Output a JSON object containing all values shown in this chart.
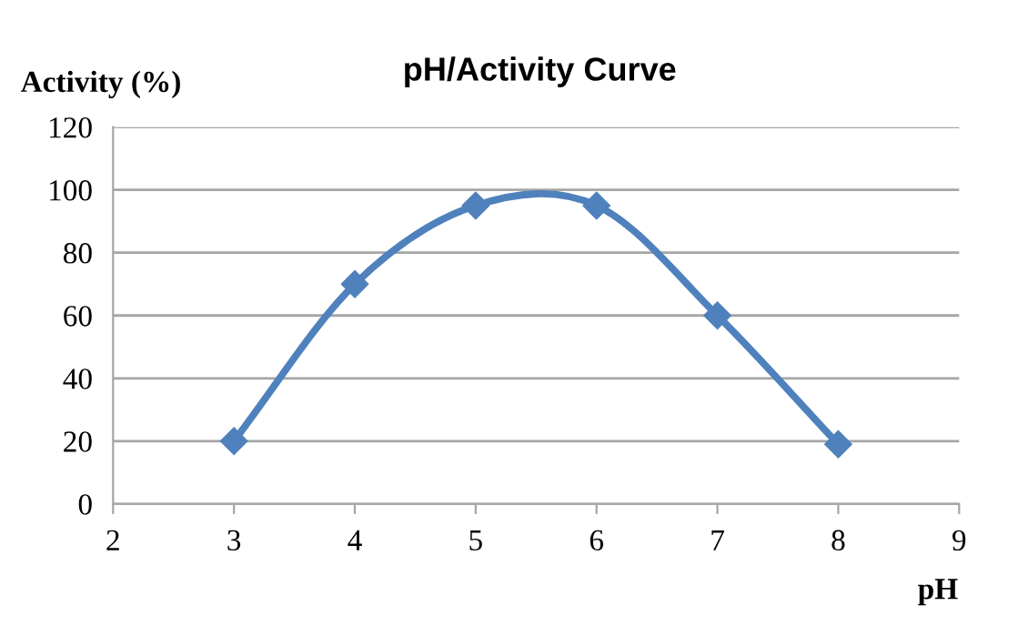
{
  "chart_data": {
    "type": "line",
    "title": "pH/Activity Curve",
    "xlabel": "pH",
    "ylabel": "Activity (%)",
    "x": [
      3,
      4,
      5,
      6,
      7,
      8
    ],
    "series": [
      {
        "color": "#4f81bd",
        "values": [
          20,
          70,
          95,
          95,
          60,
          19
        ]
      }
    ],
    "xlim": [
      2,
      9
    ],
    "xticks": [
      2,
      3,
      4,
      5,
      6,
      7,
      8,
      9
    ],
    "ylim": [
      0,
      120
    ],
    "yticks": [
      0,
      20,
      40,
      60,
      80,
      100,
      120
    ],
    "grid": "y",
    "marker": "diamond",
    "line_style": "solid"
  }
}
